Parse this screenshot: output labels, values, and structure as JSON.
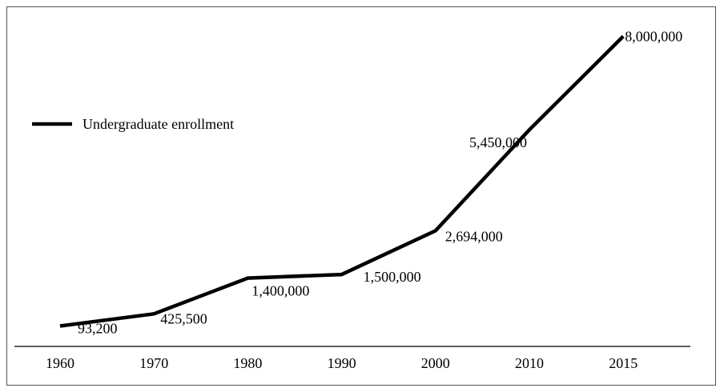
{
  "chart_data": {
    "type": "line",
    "categories": [
      "1960",
      "1970",
      "1980",
      "1990",
      "2000",
      "2010",
      "2015"
    ],
    "series": [
      {
        "name": "Undergraduate enrollment",
        "x": [
          1960,
          1970,
          1980,
          1990,
          2000,
          2010,
          2015
        ],
        "values": [
          93200,
          425500,
          1400000,
          1500000,
          2694000,
          5450000,
          8000000
        ],
        "labels": [
          "93,200",
          "425,500",
          "1,400,000",
          "1,500,000",
          "2,694,000",
          "5,450,000",
          "8,000,000"
        ]
      }
    ],
    "legend_position": "upper-left",
    "grid": false,
    "colors": {
      "line": "#000000",
      "axis": "#000000",
      "frame": "#555555"
    }
  }
}
